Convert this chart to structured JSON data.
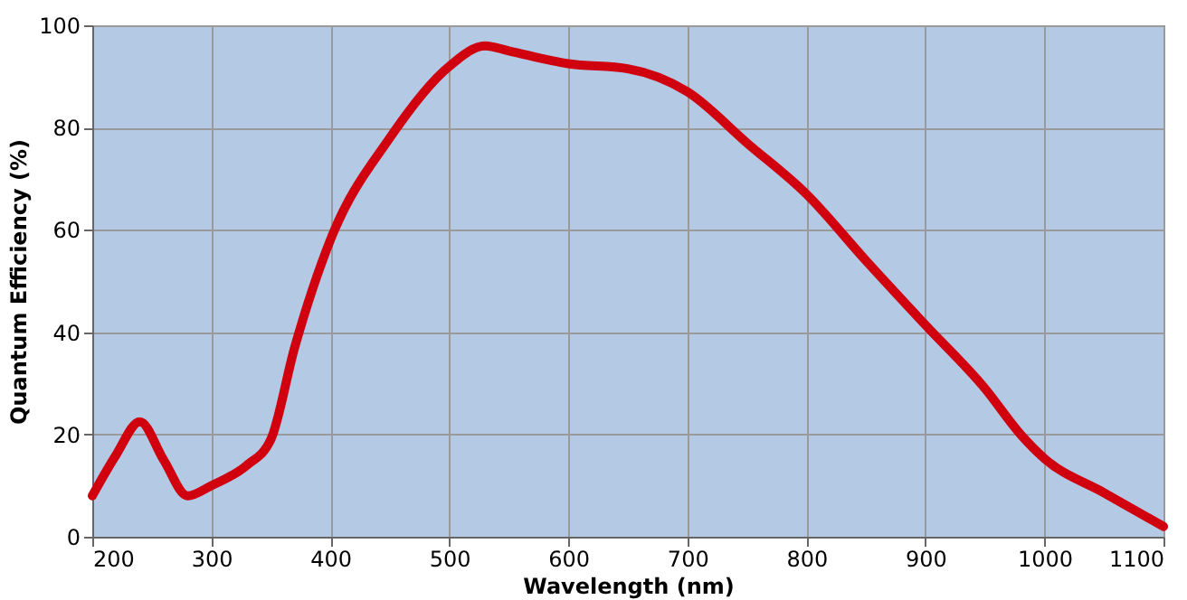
{
  "chart_data": {
    "type": "line",
    "xlabel": "Wavelength (nm)",
    "ylabel": "Quantum Efficiency (%)",
    "x": [
      200,
      220,
      240,
      260,
      280,
      300,
      330,
      350,
      370,
      400,
      450,
      500,
      530,
      550,
      600,
      650,
      700,
      750,
      800,
      850,
      900,
      950,
      980,
      1000,
      1050,
      1100
    ],
    "series": [
      {
        "color": "#d0000f",
        "values": [
          8,
          16,
          22.5,
          15,
          8,
          10,
          14,
          19,
          37,
          58,
          78,
          92,
          96,
          95,
          92.5,
          91.5,
          87,
          77,
          67,
          54,
          41.4,
          29,
          20,
          15.3,
          8.6,
          2
        ]
      }
    ],
    "xlim": [
      200,
      1100
    ],
    "xticks": [
      200,
      300,
      400,
      500,
      600,
      700,
      800,
      900,
      1000,
      1100
    ],
    "ylim": [
      0,
      100
    ],
    "yticks": [
      0,
      20,
      40,
      60,
      80,
      100
    ],
    "grid": true,
    "marker": "none",
    "line_style": "solid"
  }
}
